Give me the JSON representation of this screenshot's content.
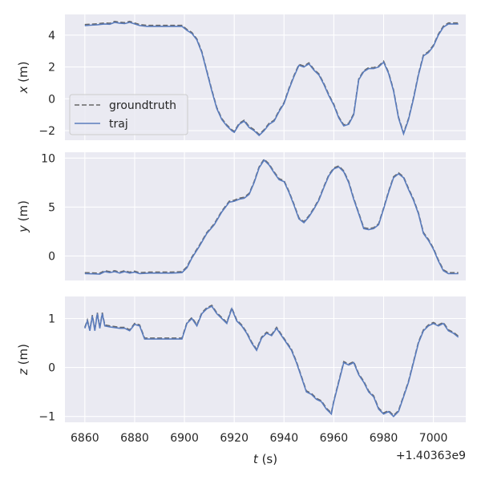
{
  "chart_data": {
    "type": "line",
    "xlabel_var": "t",
    "xlabel_unit": " (s)",
    "x_offset_label": "+1.40363e9",
    "xlim": [
      6852,
      7013
    ],
    "xticks": [
      6860,
      6880,
      6900,
      6920,
      6940,
      6960,
      6980,
      7000
    ],
    "legend": {
      "location": "lower-left",
      "entries": [
        "groundtruth",
        "traj"
      ]
    },
    "grid": true,
    "colors": {
      "groundtruth": "#666666",
      "traj": "#5a7cbd",
      "panel_bg": "#eaeaf2",
      "grid": "#ffffff"
    },
    "series": [
      {
        "name": "groundtruth"
      },
      {
        "name": "traj"
      }
    ],
    "subplots": [
      {
        "var": "x",
        "unit": " (m)",
        "ylim": [
          -2.6,
          5.3
        ],
        "yticks": [
          -2,
          0,
          2,
          4
        ],
        "ytick_labels": [
          "−2",
          "0",
          "2",
          "4"
        ],
        "points": [
          [
            6860,
            4.6
          ],
          [
            6862,
            4.62
          ],
          [
            6865,
            4.65
          ],
          [
            6868,
            4.7
          ],
          [
            6870,
            4.68
          ],
          [
            6872,
            4.8
          ],
          [
            6874,
            4.75
          ],
          [
            6876,
            4.72
          ],
          [
            6878,
            4.8
          ],
          [
            6880,
            4.7
          ],
          [
            6882,
            4.6
          ],
          [
            6885,
            4.55
          ],
          [
            6890,
            4.55
          ],
          [
            6895,
            4.55
          ],
          [
            6899,
            4.55
          ],
          [
            6901,
            4.3
          ],
          [
            6903,
            4.1
          ],
          [
            6905,
            3.7
          ],
          [
            6907,
            2.9
          ],
          [
            6909,
            1.7
          ],
          [
            6911,
            0.5
          ],
          [
            6913,
            -0.6
          ],
          [
            6915,
            -1.3
          ],
          [
            6917,
            -1.7
          ],
          [
            6919,
            -2.0
          ],
          [
            6920,
            -2.1
          ],
          [
            6922,
            -1.6
          ],
          [
            6924,
            -1.4
          ],
          [
            6926,
            -1.8
          ],
          [
            6928,
            -2.0
          ],
          [
            6930,
            -2.3
          ],
          [
            6932,
            -2.0
          ],
          [
            6934,
            -1.6
          ],
          [
            6936,
            -1.4
          ],
          [
            6938,
            -0.8
          ],
          [
            6940,
            -0.3
          ],
          [
            6942,
            0.6
          ],
          [
            6944,
            1.4
          ],
          [
            6946,
            2.1
          ],
          [
            6948,
            2.0
          ],
          [
            6950,
            2.2
          ],
          [
            6952,
            1.8
          ],
          [
            6954,
            1.5
          ],
          [
            6956,
            0.9
          ],
          [
            6958,
            0.2
          ],
          [
            6960,
            -0.4
          ],
          [
            6962,
            -1.2
          ],
          [
            6964,
            -1.7
          ],
          [
            6966,
            -1.6
          ],
          [
            6968,
            -1.0
          ],
          [
            6970,
            1.2
          ],
          [
            6972,
            1.7
          ],
          [
            6974,
            1.9
          ],
          [
            6976,
            1.9
          ],
          [
            6978,
            2.0
          ],
          [
            6980,
            2.3
          ],
          [
            6982,
            1.6
          ],
          [
            6984,
            0.5
          ],
          [
            6986,
            -1.2
          ],
          [
            6988,
            -2.2
          ],
          [
            6990,
            -1.3
          ],
          [
            6992,
            0.0
          ],
          [
            6994,
            1.5
          ],
          [
            6996,
            2.7
          ],
          [
            6998,
            2.9
          ],
          [
            7000,
            3.3
          ],
          [
            7002,
            4.0
          ],
          [
            7004,
            4.5
          ],
          [
            7006,
            4.7
          ],
          [
            7008,
            4.7
          ],
          [
            7010,
            4.7
          ]
        ]
      },
      {
        "var": "y",
        "unit": " (m)",
        "ylim": [
          -2.5,
          10.6
        ],
        "yticks": [
          0,
          5,
          10
        ],
        "ytick_labels": [
          "0",
          "5",
          "10"
        ],
        "points": [
          [
            6860,
            -1.8
          ],
          [
            6863,
            -1.82
          ],
          [
            6866,
            -1.85
          ],
          [
            6868,
            -1.6
          ],
          [
            6870,
            -1.7
          ],
          [
            6872,
            -1.6
          ],
          [
            6874,
            -1.75
          ],
          [
            6876,
            -1.6
          ],
          [
            6878,
            -1.75
          ],
          [
            6880,
            -1.65
          ],
          [
            6882,
            -1.8
          ],
          [
            6886,
            -1.75
          ],
          [
            6890,
            -1.75
          ],
          [
            6895,
            -1.75
          ],
          [
            6899,
            -1.7
          ],
          [
            6901,
            -1.2
          ],
          [
            6903,
            -0.2
          ],
          [
            6906,
            1.0
          ],
          [
            6909,
            2.3
          ],
          [
            6912,
            3.2
          ],
          [
            6915,
            4.5
          ],
          [
            6918,
            5.5
          ],
          [
            6920,
            5.6
          ],
          [
            6922,
            5.8
          ],
          [
            6924,
            5.9
          ],
          [
            6926,
            6.3
          ],
          [
            6928,
            7.5
          ],
          [
            6930,
            9.0
          ],
          [
            6932,
            9.8
          ],
          [
            6934,
            9.3
          ],
          [
            6936,
            8.5
          ],
          [
            6938,
            7.8
          ],
          [
            6940,
            7.6
          ],
          [
            6942,
            6.5
          ],
          [
            6944,
            5.2
          ],
          [
            6946,
            3.8
          ],
          [
            6948,
            3.4
          ],
          [
            6950,
            4.0
          ],
          [
            6952,
            4.8
          ],
          [
            6954,
            5.7
          ],
          [
            6956,
            7.0
          ],
          [
            6958,
            8.2
          ],
          [
            6960,
            8.9
          ],
          [
            6962,
            9.1
          ],
          [
            6964,
            8.6
          ],
          [
            6966,
            7.5
          ],
          [
            6968,
            5.8
          ],
          [
            6970,
            4.3
          ],
          [
            6972,
            2.8
          ],
          [
            6974,
            2.7
          ],
          [
            6976,
            2.8
          ],
          [
            6978,
            3.2
          ],
          [
            6980,
            4.8
          ],
          [
            6982,
            6.5
          ],
          [
            6984,
            8.0
          ],
          [
            6986,
            8.4
          ],
          [
            6988,
            8.0
          ],
          [
            6990,
            6.8
          ],
          [
            6992,
            5.7
          ],
          [
            6994,
            4.3
          ],
          [
            6996,
            2.3
          ],
          [
            6998,
            1.6
          ],
          [
            7000,
            0.7
          ],
          [
            7002,
            -0.5
          ],
          [
            7004,
            -1.5
          ],
          [
            7006,
            -1.8
          ],
          [
            7008,
            -1.8
          ],
          [
            7010,
            -1.8
          ]
        ]
      },
      {
        "var": "z",
        "unit": " (m)",
        "ylim": [
          -1.12,
          1.45
        ],
        "yticks": [
          -1,
          0,
          1
        ],
        "ytick_labels": [
          "−1",
          "0",
          "1"
        ],
        "points": [
          [
            6860,
            0.8
          ],
          [
            6861,
            0.95
          ],
          [
            6862,
            0.75
          ],
          [
            6863,
            1.05
          ],
          [
            6864,
            0.75
          ],
          [
            6865,
            1.1
          ],
          [
            6866,
            0.8
          ],
          [
            6867,
            1.1
          ],
          [
            6868,
            0.85
          ],
          [
            6870,
            0.83
          ],
          [
            6874,
            0.8
          ],
          [
            6876,
            0.8
          ],
          [
            6878,
            0.75
          ],
          [
            6880,
            0.88
          ],
          [
            6882,
            0.85
          ],
          [
            6884,
            0.58
          ],
          [
            6890,
            0.58
          ],
          [
            6895,
            0.58
          ],
          [
            6899,
            0.58
          ],
          [
            6901,
            0.9
          ],
          [
            6903,
            1.0
          ],
          [
            6905,
            0.85
          ],
          [
            6907,
            1.1
          ],
          [
            6909,
            1.2
          ],
          [
            6911,
            1.25
          ],
          [
            6913,
            1.1
          ],
          [
            6915,
            1.0
          ],
          [
            6917,
            0.9
          ],
          [
            6919,
            1.2
          ],
          [
            6921,
            0.95
          ],
          [
            6923,
            0.85
          ],
          [
            6925,
            0.7
          ],
          [
            6927,
            0.5
          ],
          [
            6929,
            0.35
          ],
          [
            6931,
            0.6
          ],
          [
            6933,
            0.7
          ],
          [
            6935,
            0.65
          ],
          [
            6937,
            0.8
          ],
          [
            6939,
            0.65
          ],
          [
            6941,
            0.5
          ],
          [
            6943,
            0.35
          ],
          [
            6945,
            0.1
          ],
          [
            6947,
            -0.2
          ],
          [
            6949,
            -0.5
          ],
          [
            6951,
            -0.55
          ],
          [
            6953,
            -0.65
          ],
          [
            6955,
            -0.7
          ],
          [
            6957,
            -0.85
          ],
          [
            6959,
            -0.95
          ],
          [
            6960,
            -0.7
          ],
          [
            6962,
            -0.3
          ],
          [
            6964,
            0.1
          ],
          [
            6966,
            0.05
          ],
          [
            6968,
            0.1
          ],
          [
            6970,
            -0.15
          ],
          [
            6972,
            -0.3
          ],
          [
            6974,
            -0.5
          ],
          [
            6976,
            -0.6
          ],
          [
            6978,
            -0.85
          ],
          [
            6980,
            -0.95
          ],
          [
            6982,
            -0.9
          ],
          [
            6984,
            -1.0
          ],
          [
            6986,
            -0.9
          ],
          [
            6988,
            -0.6
          ],
          [
            6990,
            -0.3
          ],
          [
            6992,
            0.1
          ],
          [
            6994,
            0.5
          ],
          [
            6996,
            0.75
          ],
          [
            6998,
            0.85
          ],
          [
            7000,
            0.9
          ],
          [
            7002,
            0.85
          ],
          [
            7004,
            0.9
          ],
          [
            7006,
            0.75
          ],
          [
            7008,
            0.7
          ],
          [
            7010,
            0.62
          ]
        ]
      }
    ]
  }
}
